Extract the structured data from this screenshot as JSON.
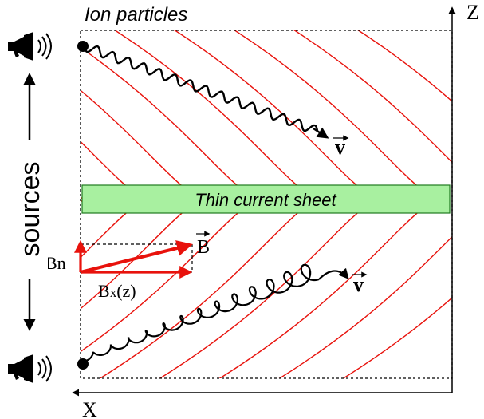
{
  "title": "Ion particles",
  "axes": {
    "z_label": "Z",
    "x_label": "X"
  },
  "sheet_label": "Thin current sheet",
  "sources_label": "sources",
  "vectors": {
    "b_label": "B",
    "bn_label": "Bn",
    "bx_main": "B",
    "bx_sub": "x",
    "bx_arg": "(z)",
    "v_label": "v"
  },
  "icons": [
    "megaphone-icon",
    "megaphone-icon"
  ],
  "colors": {
    "field_lines": "#e8120c",
    "sheet_fill": "#a8f0a0",
    "sheet_stroke": "#1e7a1e",
    "trajectory": "#000000"
  }
}
